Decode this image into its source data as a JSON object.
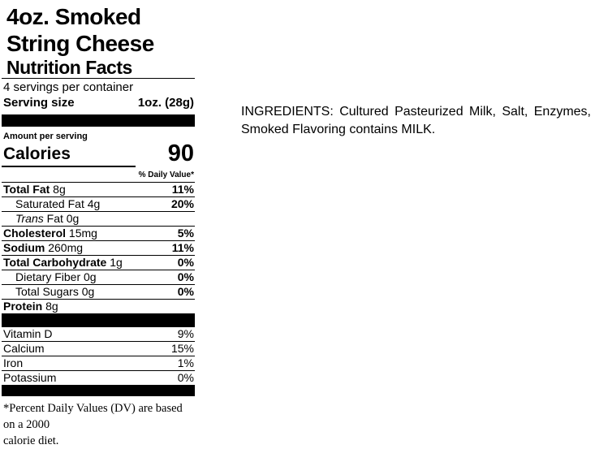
{
  "product": {
    "title_lines": [
      "4oz. Smoked",
      "String Cheese"
    ]
  },
  "nutrition": {
    "heading": "Nutrition Facts",
    "servings_per_container": "4 servings per container",
    "serving_size_label": "Serving size",
    "serving_size_value": "1oz. (28g)",
    "amount_per_serving": "Amount per serving",
    "calories_label": "Calories",
    "calories_value": "90",
    "daily_value_header": "% Daily Value*",
    "nutrients": [
      {
        "bold": "Total Fat",
        "italic": "",
        "plain": " 8g",
        "dv": "11%"
      },
      {
        "bold": "",
        "italic": "",
        "plain": "Saturated Fat 4g",
        "dv": "20%"
      },
      {
        "bold": "",
        "italic": "Trans",
        "plain": " Fat 0g",
        "dv": ""
      },
      {
        "bold": "Cholesterol",
        "italic": "",
        "plain": " 15mg",
        "dv": "5%"
      },
      {
        "bold": "Sodium",
        "italic": "",
        "plain": " 260mg",
        "dv": "11%"
      },
      {
        "bold": "Total Carbohydrate",
        "italic": "",
        "plain": " 1g",
        "dv": "0%"
      },
      {
        "bold": "",
        "italic": "",
        "plain": "Dietary Fiber 0g",
        "dv": "0%"
      },
      {
        "bold": "",
        "italic": "",
        "plain": "Total Sugars 0g",
        "dv": "0%"
      },
      {
        "bold": "Protein",
        "italic": "",
        "plain": " 8g",
        "dv": ""
      }
    ],
    "micronutrients": [
      {
        "name": "Vitamin D",
        "dv": "9%"
      },
      {
        "name": "Calcium",
        "dv": "15%"
      },
      {
        "name": "Iron",
        "dv": "1%"
      },
      {
        "name": "Potassium",
        "dv": "0%"
      }
    ],
    "footnote_lines": [
      "*Percent Daily Values (DV) are based on a 2000",
      "calorie diet."
    ]
  },
  "ingredients": {
    "lines": [
      "INGREDIENTS:  Cultured  Pasteurized  Milk,  Salt,  Enzymes,",
      "Smoked Flavoring contains MILK."
    ]
  },
  "colors": {
    "text": "#000000",
    "background": "#ffffff",
    "bar": "#000000"
  }
}
